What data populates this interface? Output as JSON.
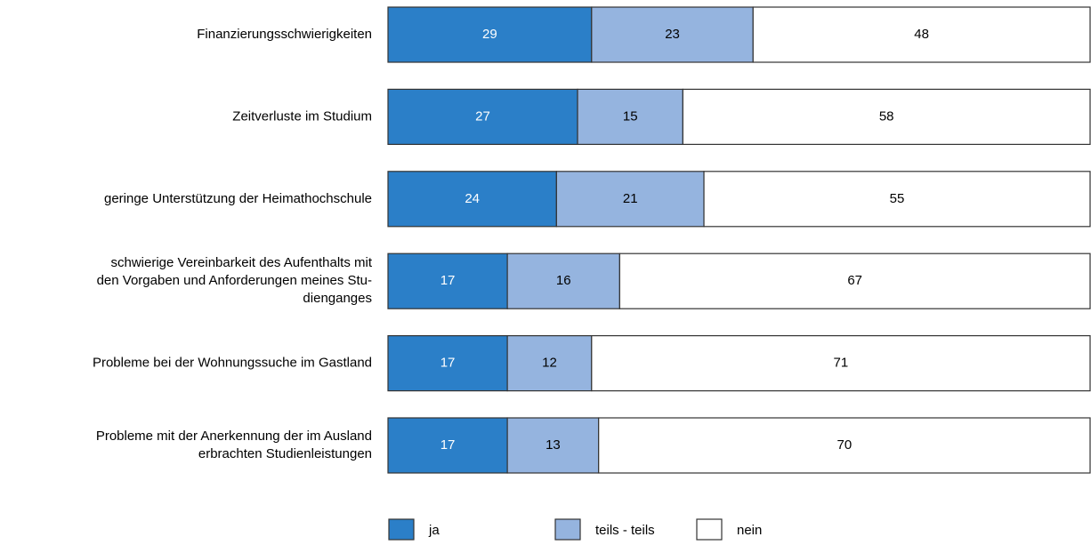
{
  "chart_data": {
    "type": "stacked_barh",
    "categories": [
      "Finanzierungsschwierigkeiten",
      "Zeitverluste im Studium",
      "geringe Unterstützung der Heimathochschule",
      "schwierige Vereinbarkeit des Aufenthalts mit\nden Vorgaben und Anforderungen meines Stu-\ndienganges",
      "Probleme bei der Wohnungssuche im Gastland",
      "Probleme mit der Anerkennung der im Ausland\nerbrachten Studienleistungen"
    ],
    "series": [
      {
        "name": "ja",
        "color": "#2b7fc8",
        "text_color": "#ffffff",
        "values": [
          29,
          27,
          24,
          17,
          17,
          17
        ]
      },
      {
        "name": "teils - teils",
        "color": "#95b4df",
        "text_color": "#000000",
        "values": [
          23,
          15,
          21,
          16,
          12,
          13
        ]
      },
      {
        "name": "nein",
        "color": "#ffffff",
        "text_color": "#000000",
        "values": [
          48,
          58,
          55,
          67,
          71,
          70
        ]
      }
    ],
    "xlim": [
      0,
      100
    ],
    "legend": "bottom"
  }
}
